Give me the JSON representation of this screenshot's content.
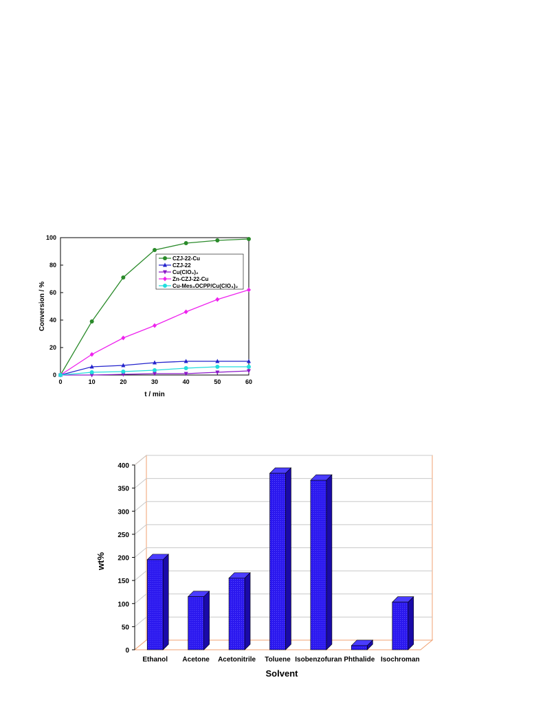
{
  "chart_data": [
    {
      "type": "line",
      "xlabel": "t / min",
      "ylabel": "Conversion / %",
      "xlim": [
        0,
        60
      ],
      "ylim": [
        0,
        100
      ],
      "x_ticks": [
        "0",
        "10",
        "20",
        "30",
        "40",
        "50",
        "60"
      ],
      "y_ticks": [
        "0",
        "20",
        "40",
        "60",
        "80",
        "100"
      ],
      "legend_position": "upper-right",
      "x": [
        0,
        10,
        20,
        30,
        40,
        50,
        60
      ],
      "series": [
        {
          "name": "CZJ-22-Cu",
          "values": [
            0,
            39,
            71,
            91,
            96,
            98,
            99
          ],
          "color": "#2a8a2a",
          "marker": "circle"
        },
        {
          "name": "CZJ-22",
          "values": [
            0,
            6,
            7,
            9,
            10,
            10,
            10
          ],
          "color": "#2222cc",
          "marker": "triangle-up"
        },
        {
          "name": "Cu(ClO4)2",
          "values": [
            0,
            0,
            0.5,
            1,
            1,
            2,
            3
          ],
          "color": "#8a18c8",
          "marker": "triangle-down"
        },
        {
          "name": "Zn-CZJ-22-Cu",
          "values": [
            0,
            15,
            27,
            36,
            46,
            55,
            62
          ],
          "color": "#ee22ee",
          "marker": "diamond"
        },
        {
          "name": "Cu-MesOCPP/Cu(ClO4)2",
          "values": [
            0,
            2,
            2.5,
            3.5,
            5,
            6,
            6
          ],
          "color": "#22dddd",
          "marker": "circle"
        }
      ],
      "legend_labels": [
        "CZJ-22-Cu",
        "CZJ-22",
        "Cu(ClO₄)₂",
        "Zn-CZJ-22-Cu",
        "Cu-Mes₄OCPP/Cu(ClO₄)₂"
      ]
    },
    {
      "type": "bar",
      "xlabel": "Solvent",
      "ylabel": "wt%",
      "ylim": [
        0,
        400
      ],
      "y_ticks": [
        "0",
        "50",
        "100",
        "150",
        "200",
        "250",
        "300",
        "350",
        "400"
      ],
      "grid": true,
      "categories": [
        "Ethanol",
        "Acetone",
        "Acetonitrile",
        "Toluene",
        "Isobenzofuran",
        "Phthalide",
        "Isochroman"
      ],
      "values": [
        195,
        115,
        155,
        382,
        367,
        9,
        103
      ],
      "bar_color": "#2b18ee",
      "frame_color": "#f0a070"
    }
  ]
}
